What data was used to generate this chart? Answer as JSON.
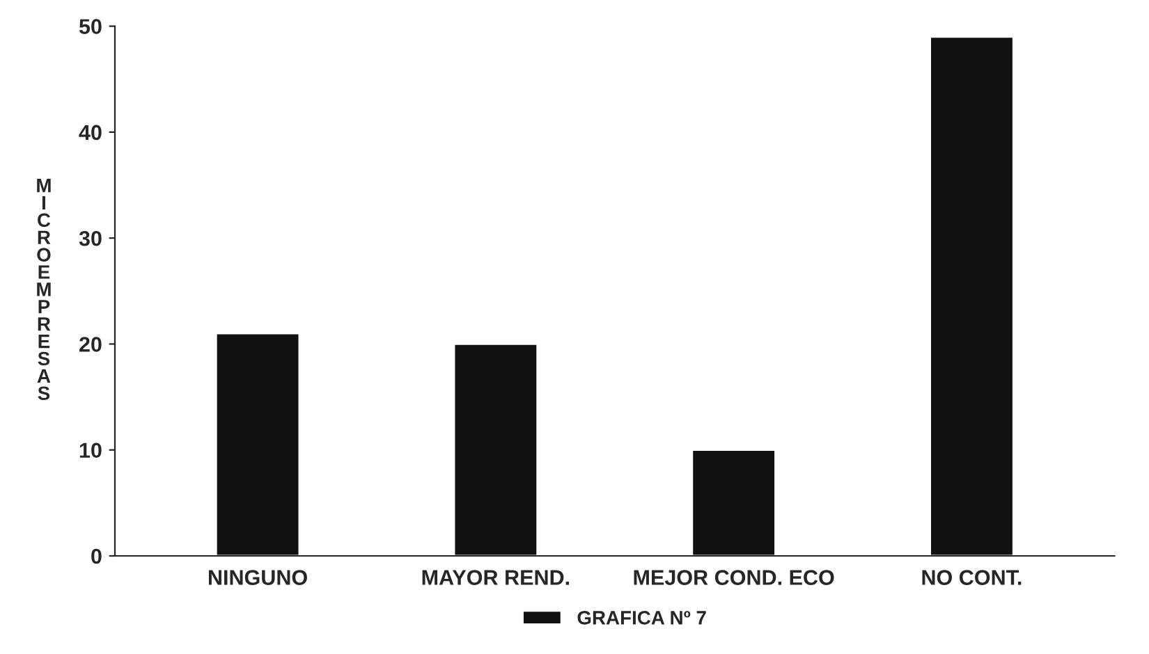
{
  "chart_data": {
    "type": "bar",
    "ylabel": "MICROEMPRESAS",
    "categories": [
      "NINGUNO",
      "MAYOR REND.",
      "MEJOR COND. ECO",
      "NO CONT."
    ],
    "series": [
      {
        "name": "GRAFICA Nº 7",
        "color": "#111111",
        "values": [
          21,
          20,
          10,
          49
        ]
      }
    ],
    "ylim": [
      0,
      50
    ],
    "yticks": [
      0,
      10,
      20,
      30,
      40,
      50
    ],
    "legend": "bottom",
    "grid": false
  }
}
